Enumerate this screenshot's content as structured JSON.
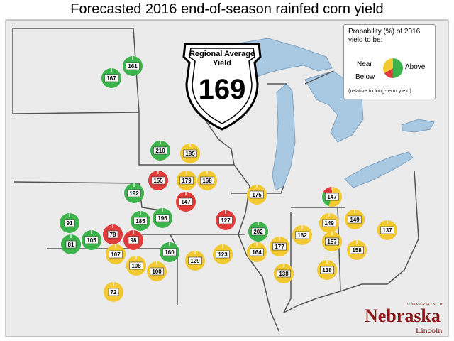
{
  "title": "Forecasted 2016 end-of-season rainfed corn yield",
  "legend": {
    "title": "Probability (%) of 2016 yield to be:",
    "near": "Near",
    "above": "Above",
    "below": "Below",
    "note": "(relative to long-term yield)"
  },
  "shield": {
    "label": "Regional Average Yield",
    "value": "169"
  },
  "logo": {
    "university": "UNIVERSITY OF",
    "name": "Nebraska",
    "campus": "Lincoln"
  },
  "colors": {
    "above": "#3cb44b",
    "near": "#f2c930",
    "below": "#e03c3c",
    "water": "#a9c9e3",
    "land": "#ebebeb",
    "border": "#555555"
  },
  "sites": [
    {
      "label": "161",
      "color": "above"
    },
    {
      "label": "167",
      "color": "above"
    },
    {
      "label": "210",
      "color": "above"
    },
    {
      "label": "185",
      "color": "near"
    },
    {
      "label": "155",
      "color": "below"
    },
    {
      "label": "179",
      "color": "near"
    },
    {
      "label": "168",
      "color": "near"
    },
    {
      "label": "147",
      "color": "below"
    },
    {
      "label": "192",
      "color": "above"
    },
    {
      "label": "175",
      "color": "near"
    },
    {
      "label": "147",
      "color": "mixed"
    },
    {
      "label": "91",
      "color": "above"
    },
    {
      "label": "196",
      "color": "above"
    },
    {
      "label": "185",
      "color": "above"
    },
    {
      "label": "127",
      "color": "below"
    },
    {
      "label": "149",
      "color": "near"
    },
    {
      "label": "149",
      "color": "near"
    },
    {
      "label": "137",
      "color": "near"
    },
    {
      "label": "78",
      "color": "below"
    },
    {
      "label": "98",
      "color": "below"
    },
    {
      "label": "105",
      "color": "above"
    },
    {
      "label": "81",
      "color": "above"
    },
    {
      "label": "202",
      "color": "above"
    },
    {
      "label": "162",
      "color": "near"
    },
    {
      "label": "177",
      "color": "near"
    },
    {
      "label": "157",
      "color": "near"
    },
    {
      "label": "164",
      "color": "near"
    },
    {
      "label": "107",
      "color": "near"
    },
    {
      "label": "160",
      "color": "above"
    },
    {
      "label": "123",
      "color": "near"
    },
    {
      "label": "129",
      "color": "near"
    },
    {
      "label": "158",
      "color": "near"
    },
    {
      "label": "108",
      "color": "near"
    },
    {
      "label": "100",
      "color": "near"
    },
    {
      "label": "138",
      "color": "near"
    },
    {
      "label": "138",
      "color": "near"
    },
    {
      "label": "72",
      "color": "near"
    }
  ]
}
